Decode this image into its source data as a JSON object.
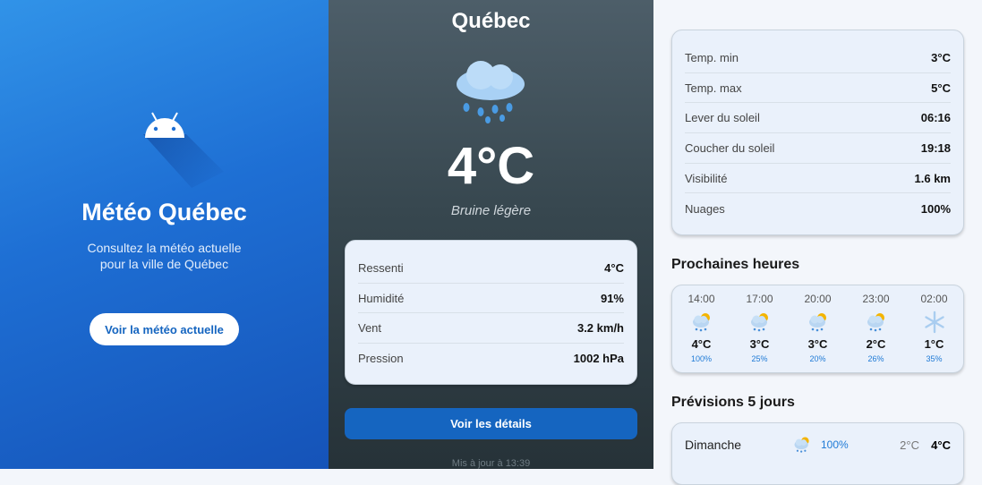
{
  "welcome": {
    "title": "Météo Québec",
    "subtitle_line1": "Consultez la météo actuelle",
    "subtitle_line2": "pour la ville de Québec",
    "button": "Voir la météo actuelle"
  },
  "current": {
    "city": "Québec",
    "temperature": "4°C",
    "description": "Bruine légère",
    "icon": "rain-cloud-icon",
    "details": [
      {
        "label": "Ressenti",
        "value": "4°C"
      },
      {
        "label": "Humidité",
        "value": "91%"
      },
      {
        "label": "Vent",
        "value": "3.2 km/h"
      },
      {
        "label": "Pression",
        "value": "1002 hPa"
      }
    ],
    "button": "Voir les détails",
    "updated": "Mis à jour à 13:39"
  },
  "details": {
    "rows": [
      {
        "label": "Temp. min",
        "value": "3°C"
      },
      {
        "label": "Temp. max",
        "value": "5°C"
      },
      {
        "label": "Lever du soleil",
        "value": "06:16"
      },
      {
        "label": "Coucher du soleil",
        "value": "19:18"
      },
      {
        "label": "Visibilité",
        "value": "1.6 km"
      },
      {
        "label": "Nuages",
        "value": "100%"
      }
    ],
    "hourly_title": "Prochaines heures",
    "hourly": [
      {
        "time": "14:00",
        "icon": "sun-rain-cloud-icon",
        "temp": "4°C",
        "precip": "100%"
      },
      {
        "time": "17:00",
        "icon": "sun-rain-cloud-icon",
        "temp": "3°C",
        "precip": "25%"
      },
      {
        "time": "20:00",
        "icon": "sun-rain-cloud-icon",
        "temp": "3°C",
        "precip": "20%"
      },
      {
        "time": "23:00",
        "icon": "sun-rain-cloud-icon",
        "temp": "2°C",
        "precip": "26%"
      },
      {
        "time": "02:00",
        "icon": "snowflake-icon",
        "temp": "1°C",
        "precip": "35%"
      }
    ],
    "daily_title": "Prévisions 5 jours",
    "daily": [
      {
        "day": "Dimanche",
        "icon": "sun-rain-cloud-icon",
        "precip": "100%",
        "min": "2°C",
        "max": "4°C"
      }
    ]
  }
}
